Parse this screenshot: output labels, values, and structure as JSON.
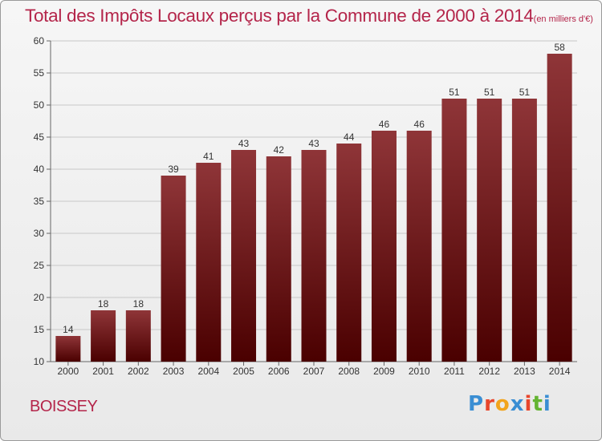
{
  "title": "Total des Impôts Locaux perçus par la Commune de 2000 à 2014",
  "subtitle": "(en milliers d'€)",
  "commune": "BOISSEY",
  "logo": {
    "text": "Proxiti",
    "colors": [
      "#3a8ed3",
      "#e8462c",
      "#f2a41c",
      "#3a8ed3",
      "#e8462c",
      "#64b432",
      "#3a8ed3"
    ]
  },
  "colors": {
    "title": "#b4254a",
    "bar_top": "#8f3538",
    "bar_bottom": "#4a0000",
    "grid": "#c8c8c8"
  },
  "chart_data": {
    "type": "bar",
    "title": "Total des Impôts Locaux perçus par la Commune de 2000 à 2014",
    "xlabel": "",
    "ylabel": "",
    "ylim": [
      10,
      60
    ],
    "yticks": [
      10,
      15,
      20,
      25,
      30,
      35,
      40,
      45,
      50,
      55,
      60
    ],
    "grid": true,
    "categories": [
      "2000",
      "2001",
      "2002",
      "2003",
      "2004",
      "2005",
      "2006",
      "2007",
      "2008",
      "2009",
      "2010",
      "2011",
      "2012",
      "2013",
      "2014"
    ],
    "values": [
      14,
      18,
      18,
      39,
      41,
      43,
      42,
      43,
      44,
      46,
      46,
      51,
      51,
      51,
      58
    ]
  }
}
